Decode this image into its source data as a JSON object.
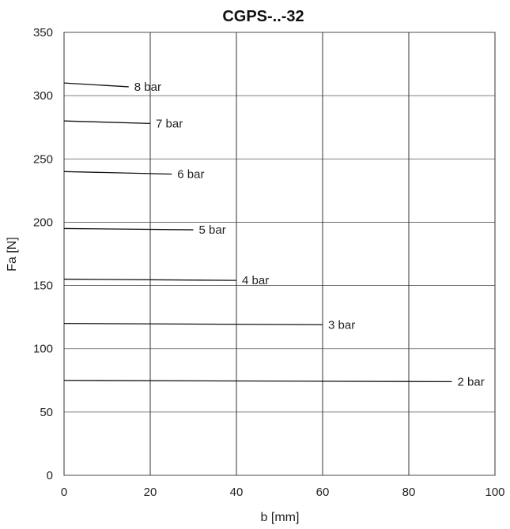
{
  "chart_data": {
    "type": "line",
    "title": "CGPS-..-32",
    "xlabel": "b [mm]",
    "ylabel": "Fa [N]",
    "xlim": [
      0,
      100
    ],
    "ylim": [
      0,
      350
    ],
    "xticks": [
      "0",
      "20",
      "40",
      "60",
      "80",
      "100"
    ],
    "yticks": [
      "0",
      "50",
      "100",
      "150",
      "200",
      "250",
      "300",
      "350"
    ],
    "grid": true,
    "legend": "labels at line ends",
    "series": [
      {
        "name": "2 bar",
        "x": [
          0,
          90
        ],
        "y": [
          75,
          74
        ]
      },
      {
        "name": "3 bar",
        "x": [
          0,
          60
        ],
        "y": [
          120,
          119
        ]
      },
      {
        "name": "4 bar",
        "x": [
          0,
          40
        ],
        "y": [
          155,
          154
        ]
      },
      {
        "name": "5 bar",
        "x": [
          0,
          30
        ],
        "y": [
          195,
          194
        ]
      },
      {
        "name": "6 bar",
        "x": [
          0,
          25
        ],
        "y": [
          240,
          238
        ]
      },
      {
        "name": "7 bar",
        "x": [
          0,
          20
        ],
        "y": [
          280,
          278
        ]
      },
      {
        "name": "8 bar",
        "x": [
          0,
          15
        ],
        "y": [
          310,
          307
        ]
      }
    ]
  }
}
